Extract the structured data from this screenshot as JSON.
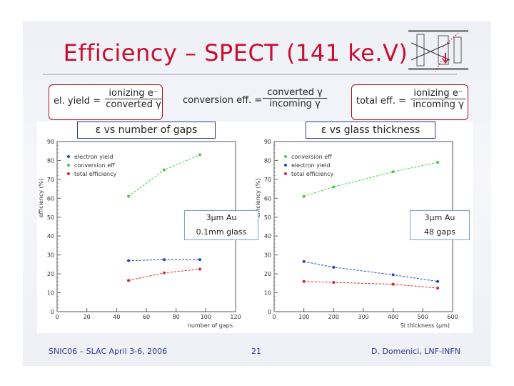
{
  "slide": {
    "title": "Efficiency – SPECT (141 ke.V)",
    "footer_left": "SNIC06 – SLAC April 3-6, 2006",
    "footer_center": "21",
    "footer_right": "D. Domenici, LNF-INFN",
    "colors": {
      "title": "#c8102e",
      "accent": "#2b3a8c",
      "box_border": "#b01020"
    }
  },
  "formulas": [
    {
      "lhs": "el. yield =",
      "numerator": "ionizing e⁻",
      "denominator": "converted γ"
    },
    {
      "lhs": "conversion eff. =",
      "numerator": "converted γ",
      "denominator": "incoming γ"
    },
    {
      "lhs": "total eff. =",
      "numerator": "ionizing e⁻",
      "denominator": "incoming γ"
    }
  ],
  "chart_data": [
    {
      "type": "line",
      "caption": "ε vs number of gaps",
      "ylabel": "efficiency (%)",
      "xlabel": "number of gaps",
      "xlim": [
        0,
        120
      ],
      "ylim": [
        0,
        90
      ],
      "xticks": [
        0,
        20,
        40,
        60,
        80,
        100,
        120
      ],
      "yticks": [
        0,
        10,
        20,
        30,
        40,
        50,
        60,
        70,
        80,
        90
      ],
      "legend_position": "top-left",
      "annotation": [
        "3µm Au",
        "0.1mm glass"
      ],
      "series": [
        {
          "name": "electron yield",
          "color": "#2244cc",
          "x": [
            48,
            72,
            96
          ],
          "y": [
            27,
            27.5,
            27.5
          ]
        },
        {
          "name": "conversion eff",
          "color": "#44cc44",
          "x": [
            48,
            72,
            96
          ],
          "y": [
            61,
            75,
            83
          ]
        },
        {
          "name": "total efficiency",
          "color": "#dd2233",
          "x": [
            48,
            72,
            96
          ],
          "y": [
            16.5,
            20.5,
            22.5
          ]
        }
      ]
    },
    {
      "type": "line",
      "caption": "ε vs glass thickness",
      "ylabel": "efficiency (%)",
      "xlabel": "Si thickness (µm)",
      "xlim": [
        0,
        600
      ],
      "ylim": [
        0,
        90
      ],
      "xticks": [
        0,
        100,
        200,
        300,
        400,
        500,
        600
      ],
      "yticks": [
        0,
        10,
        20,
        30,
        40,
        50,
        60,
        70,
        80,
        90
      ],
      "legend_position": "top-left",
      "annotation": [
        "3µm Au",
        "48 gaps"
      ],
      "series": [
        {
          "name": "conversion eff",
          "color": "#44cc44",
          "x": [
            100,
            200,
            400,
            550
          ],
          "y": [
            61,
            66,
            74,
            79
          ]
        },
        {
          "name": "electron yield",
          "color": "#2244cc",
          "x": [
            100,
            200,
            400,
            550
          ],
          "y": [
            26.5,
            23.5,
            19.5,
            16
          ]
        },
        {
          "name": "total efficiency",
          "color": "#dd2233",
          "x": [
            100,
            200,
            400,
            550
          ],
          "y": [
            16,
            15.5,
            14.5,
            12.5
          ]
        }
      ]
    }
  ]
}
